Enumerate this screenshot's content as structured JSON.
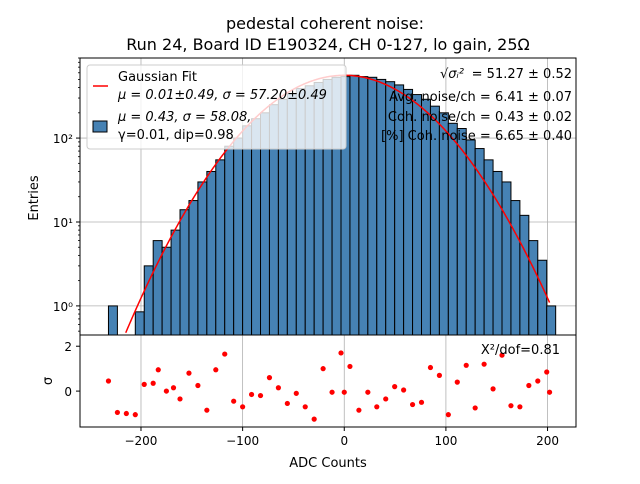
{
  "chart_data": [
    {
      "type": "bar",
      "title_line1": "pedestal coherent noise:",
      "title_line2": "Run 24, Board ID E190324, CH 0-127, lo gain, 25Ω",
      "ylabel": "Entries",
      "yscale": "log",
      "xlim": [
        -260,
        228
      ],
      "ylim": [
        0.45,
        900
      ],
      "y_ticks": [
        {
          "value": 1,
          "label": "10⁰"
        },
        {
          "value": 10,
          "label": "10¹"
        },
        {
          "value": 100,
          "label": "10²"
        }
      ],
      "bin_width": 8.8,
      "bins_x": [
        -232,
        -223.2,
        -214.4,
        -205.6,
        -196.8,
        -188,
        -179.2,
        -170.4,
        -161.6,
        -152.8,
        -144,
        -135.2,
        -126.4,
        -117.6,
        -108.8,
        -100,
        -91.2,
        -82.4,
        -73.6,
        -64.8,
        -56,
        -47.2,
        -38.4,
        -29.6,
        -20.8,
        -12,
        -3.2,
        5.6,
        14.4,
        23.2,
        32,
        40.8,
        49.6,
        58.4,
        67.2,
        76,
        84.8,
        93.6,
        102.4,
        111.2,
        120,
        128.8,
        137.6,
        146.4,
        155.2,
        164,
        172.8,
        181.6,
        190.4,
        199.2
      ],
      "counts": [
        1,
        0,
        0,
        0.85,
        3,
        6,
        5,
        8,
        14,
        18,
        30,
        40,
        55,
        80,
        100,
        140,
        170,
        200,
        250,
        290,
        340,
        390,
        420,
        460,
        500,
        530,
        540,
        560,
        540,
        530,
        500,
        470,
        430,
        380,
        330,
        290,
        240,
        200,
        150,
        130,
        95,
        75,
        55,
        40,
        30,
        18,
        12,
        6,
        3.5,
        1
      ],
      "bar_color": "#4682b4",
      "fit_color": "#ff0000",
      "fit": {
        "amplitude": 560,
        "mu": 0.01,
        "sigma": 57.2,
        "x_range": [
          -215,
          202
        ]
      },
      "legend": {
        "placement": "upper-left",
        "fit_label": "Gaussian Fit",
        "fit_params": "μ = 0.01±0.49, σ = 57.20±0.49",
        "data_label_line1": "μ = 0.43, σ = 58.08,",
        "data_label_line2": "γ=0.01, dip=0.98"
      },
      "annotations": [
        {
          "label": "√σᵢ²",
          "value": " = 51.27 ± 0.52"
        },
        {
          "label": "",
          "value": "Avg. noise/ch = 6.41 ± 0.07"
        },
        {
          "label": "",
          "value": "Coh. noise/ch = 0.43 ± 0.02"
        },
        {
          "label": "",
          "value": "[%] Coh. noise = 6.65 ± 0.40"
        }
      ],
      "grid": true
    },
    {
      "type": "scatter",
      "xlabel": "ADC Counts",
      "ylabel": "σ",
      "xlim": [
        -260,
        228
      ],
      "ylim": [
        -1.6,
        2.5
      ],
      "x_ticks": [
        -200,
        -100,
        0,
        100,
        200
      ],
      "x_tick_labels": [
        "−200",
        "−100",
        "0",
        "100",
        "200"
      ],
      "y_ticks": [
        0,
        2
      ],
      "y_tick_labels": [
        "0",
        "2"
      ],
      "point_color": "#ff0000",
      "annotation": "X²/dof=0.81",
      "points": [
        {
          "x": -232,
          "y": 0.45
        },
        {
          "x": -223.2,
          "y": -0.95
        },
        {
          "x": -214.4,
          "y": -1.0
        },
        {
          "x": -205.6,
          "y": -1.05
        },
        {
          "x": -196.8,
          "y": 0.3
        },
        {
          "x": -188,
          "y": 0.35
        },
        {
          "x": -183,
          "y": 0.95
        },
        {
          "x": -175,
          "y": 0.0
        },
        {
          "x": -168,
          "y": 0.15
        },
        {
          "x": -161.6,
          "y": -0.35
        },
        {
          "x": -152.8,
          "y": 0.8
        },
        {
          "x": -144,
          "y": 0.25
        },
        {
          "x": -135.2,
          "y": -0.85
        },
        {
          "x": -126.4,
          "y": 0.95
        },
        {
          "x": -117.6,
          "y": 1.65
        },
        {
          "x": -108.8,
          "y": -0.45
        },
        {
          "x": -100,
          "y": -0.7
        },
        {
          "x": -91.2,
          "y": -0.15
        },
        {
          "x": -82.4,
          "y": -0.2
        },
        {
          "x": -73.6,
          "y": 0.6
        },
        {
          "x": -64.8,
          "y": 0.15
        },
        {
          "x": -56,
          "y": -0.55
        },
        {
          "x": -47.2,
          "y": -0.1
        },
        {
          "x": -38.4,
          "y": -0.7
        },
        {
          "x": -29.6,
          "y": -1.25
        },
        {
          "x": -20.8,
          "y": 1.0
        },
        {
          "x": -12,
          "y": -0.05
        },
        {
          "x": -3.2,
          "y": 1.7
        },
        {
          "x": 0,
          "y": -0.05
        },
        {
          "x": 5.6,
          "y": 1.1
        },
        {
          "x": 14.4,
          "y": -0.85
        },
        {
          "x": 23.2,
          "y": -0.05
        },
        {
          "x": 32,
          "y": -0.7
        },
        {
          "x": 40.8,
          "y": -0.35
        },
        {
          "x": 49.6,
          "y": 0.2
        },
        {
          "x": 58.4,
          "y": 0.05
        },
        {
          "x": 67.2,
          "y": -0.6
        },
        {
          "x": 76,
          "y": -0.5
        },
        {
          "x": 84.8,
          "y": 1.05
        },
        {
          "x": 93.6,
          "y": 0.7
        },
        {
          "x": 102.4,
          "y": -1.05
        },
        {
          "x": 111.2,
          "y": 0.4
        },
        {
          "x": 120,
          "y": 1.15
        },
        {
          "x": 128.8,
          "y": -0.75
        },
        {
          "x": 137.6,
          "y": 1.2
        },
        {
          "x": 146.4,
          "y": 0.1
        },
        {
          "x": 155.2,
          "y": 1.6
        },
        {
          "x": 164,
          "y": -0.65
        },
        {
          "x": 172.8,
          "y": -0.7
        },
        {
          "x": 181.6,
          "y": 0.25
        },
        {
          "x": 190.4,
          "y": 0.45
        },
        {
          "x": 199.2,
          "y": 0.85
        },
        {
          "x": 202,
          "y": -0.05
        }
      ]
    }
  ]
}
